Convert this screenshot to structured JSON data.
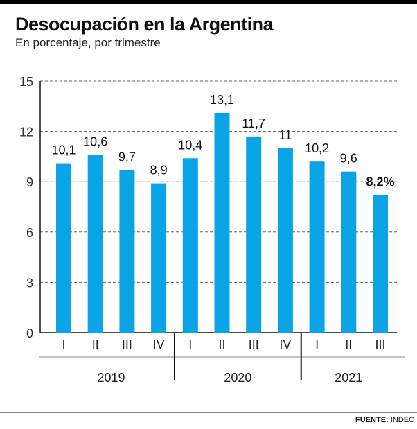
{
  "header": {
    "title": "Desocupación en la Argentina",
    "subtitle": "En porcentaje, por trimestre"
  },
  "footer": {
    "source_label": "FUENTE:",
    "source_value": "INDEC"
  },
  "colors": {
    "bar": "#0aa3e6",
    "text": "#111111"
  },
  "chart_data": {
    "type": "bar",
    "title": "Desocupación en la Argentina",
    "subtitle": "En porcentaje, por trimestre",
    "xlabel": "",
    "ylabel": "",
    "ylim": [
      0,
      15
    ],
    "yticks": [
      0,
      3,
      6,
      9,
      12,
      15
    ],
    "grid": true,
    "categories": [
      "I",
      "II",
      "III",
      "IV",
      "I",
      "II",
      "III",
      "IV",
      "I",
      "II",
      "III"
    ],
    "groups": [
      {
        "label": "2019",
        "count": 4
      },
      {
        "label": "2020",
        "count": 4
      },
      {
        "label": "2021",
        "count": 3
      }
    ],
    "values": [
      10.1,
      10.6,
      9.7,
      8.9,
      10.4,
      13.1,
      11.7,
      11,
      10.2,
      9.6,
      8.2
    ],
    "value_labels": [
      "10,1",
      "10,6",
      "9,7",
      "8,9",
      "10,4",
      "13,1",
      "11,7",
      "11",
      "10,2",
      "9,6",
      "8,2%"
    ],
    "highlight_index": 10
  }
}
